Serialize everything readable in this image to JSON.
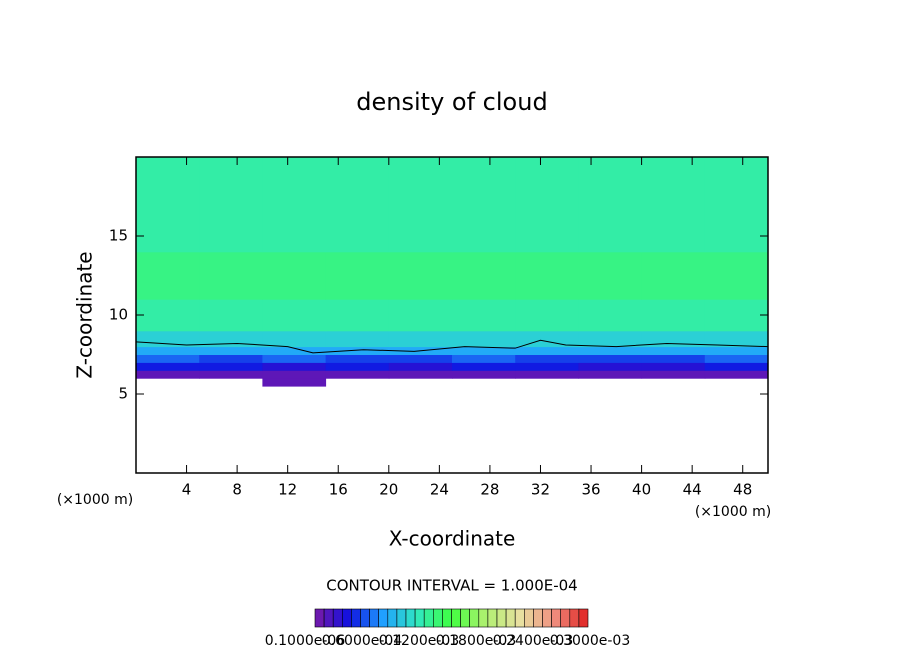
{
  "chart_data": {
    "type": "shade",
    "title": "density of cloud",
    "xlabel": "X-coordinate",
    "ylabel": "Z-coordinate",
    "xunit": "(×1000 m)",
    "xunit_right": "(×1000 m)",
    "annotation": "CONTOUR INTERVAL = 1.000E-04",
    "xlim": [
      0,
      50
    ],
    "ylim": [
      0,
      20
    ],
    "xticks": [
      4,
      8,
      12,
      16,
      20,
      24,
      28,
      32,
      36,
      40,
      44,
      48
    ],
    "yticks": [
      5,
      10,
      15
    ],
    "x_edges": [
      0,
      5,
      10,
      15,
      20,
      25,
      30,
      35,
      40,
      45,
      50
    ],
    "z_edges": [
      5.5,
      6,
      6.5,
      7,
      7.5,
      8,
      9,
      11,
      14,
      20
    ],
    "values": [
      [
        null,
        null,
        1e-05,
        null,
        null,
        null,
        null,
        null,
        null,
        null
      ],
      [
        1e-05,
        1e-05,
        1e-05,
        1e-05,
        1e-05,
        1e-05,
        1e-05,
        1e-05,
        1e-05,
        1e-05
      ],
      [
        4e-05,
        4e-05,
        3e-05,
        4e-05,
        3e-05,
        4e-05,
        4e-05,
        3e-05,
        3e-05,
        4e-05
      ],
      [
        6e-05,
        5e-05,
        6e-05,
        5e-05,
        5e-05,
        6e-05,
        5e-05,
        5e-05,
        5e-05,
        6e-05
      ],
      [
        8e-05,
        8e-05,
        8e-05,
        8e-05,
        8e-05,
        8e-05,
        8e-05,
        8e-05,
        8e-05,
        8e-05
      ],
      [
        0.0001,
        0.0001,
        0.0001,
        0.0001,
        0.0001,
        0.0001,
        0.0001,
        0.0001,
        0.0001,
        0.0001
      ],
      [
        0.00012,
        0.00012,
        0.00012,
        0.00012,
        0.00012,
        0.00012,
        0.00012,
        0.00012,
        0.00012,
        0.00012
      ],
      [
        0.00013,
        0.00013,
        0.00013,
        0.00013,
        0.00013,
        0.00013,
        0.00013,
        0.00013,
        0.00013,
        0.00013
      ],
      [
        0.00012,
        0.00012,
        0.00012,
        0.00012,
        0.00012,
        0.00012,
        0.00012,
        0.00012,
        0.00012,
        0.00012
      ]
    ],
    "contour": {
      "x": [
        0,
        4,
        8,
        12,
        14,
        18,
        22,
        26,
        30,
        32,
        34,
        38,
        42,
        46,
        50
      ],
      "z": [
        8.3,
        8.1,
        8.2,
        8.0,
        7.6,
        7.8,
        7.7,
        8.0,
        7.9,
        8.4,
        8.1,
        8.0,
        8.2,
        8.1,
        8.0
      ]
    },
    "clim": [
      0,
      0.0003
    ],
    "color_stops": [
      "#7a1aa8",
      "#1010e0",
      "#20a0ff",
      "#30e8c0",
      "#40ff40",
      "#b0f070",
      "#e8e0a0",
      "#f09080",
      "#e02020"
    ],
    "colorbar_labels": [
      "0.1000e-06",
      "0.6000e-04",
      "0.1200e-03",
      "0.1800e-03",
      "0.2400e-03",
      "0.3000e-03"
    ]
  }
}
